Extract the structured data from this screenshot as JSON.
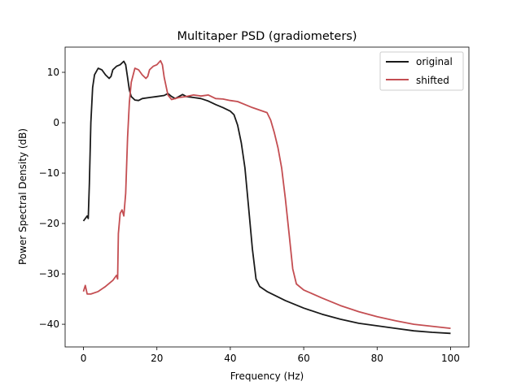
{
  "chart_data": {
    "type": "line",
    "title": "Multitaper PSD (gradiometers)",
    "xlabel": "Frequency (Hz)",
    "ylabel": "Power Spectral Density (dB)",
    "xlim": [
      -5,
      105
    ],
    "ylim": [
      -44.5,
      15
    ],
    "xticks": [
      0,
      20,
      40,
      60,
      80,
      100
    ],
    "yticks": [
      10,
      0,
      -10,
      -20,
      -30,
      -40
    ],
    "grid": false,
    "legend": "top-right",
    "series": [
      {
        "name": "original",
        "color": "#1a1a1a",
        "x": [
          0,
          0.5,
          1,
          1.3,
          1.6,
          2,
          2.5,
          3,
          4,
          5,
          6,
          7,
          7.5,
          8,
          9,
          10,
          11,
          11.5,
          12,
          12.5,
          13,
          14,
          15,
          16,
          18,
          20,
          22,
          23,
          24,
          25,
          27,
          28,
          30,
          32,
          34,
          36,
          38,
          40,
          41,
          42,
          43,
          44,
          45,
          46,
          47,
          48,
          50,
          55,
          60,
          65,
          70,
          75,
          80,
          85,
          90,
          95,
          100
        ],
        "y": [
          -19.5,
          -19,
          -18.5,
          -19,
          -12,
          0,
          7,
          9.5,
          10.8,
          10.5,
          9.5,
          8.8,
          9.2,
          10.5,
          11.2,
          11.5,
          12.2,
          11.5,
          9,
          6.5,
          5.2,
          4.5,
          4.4,
          4.8,
          5,
          5.2,
          5.4,
          5.8,
          5.2,
          4.8,
          5.6,
          5.2,
          5,
          4.8,
          4.3,
          3.6,
          3,
          2.3,
          1.6,
          -0.5,
          -4,
          -9,
          -17,
          -25,
          -31,
          -32.5,
          -33.5,
          -35.3,
          -36.8,
          -38,
          -39,
          -39.8,
          -40.3,
          -40.8,
          -41.3,
          -41.6,
          -41.8
        ]
      },
      {
        "name": "shifted",
        "color": "#c44e52",
        "x": [
          0,
          0.5,
          1,
          2,
          4,
          6,
          8,
          9,
          9.3,
          9.5,
          10,
          10.5,
          11,
          11.5,
          12,
          12.5,
          13,
          14,
          15,
          16,
          17,
          17.5,
          18,
          19,
          20,
          21,
          21.5,
          22,
          23,
          24,
          26,
          28,
          30,
          32,
          34,
          36,
          38,
          40,
          42,
          44,
          46,
          48,
          50,
          51,
          52,
          53,
          54,
          55,
          56,
          57,
          58,
          60,
          65,
          70,
          75,
          80,
          85,
          90,
          95,
          100
        ],
        "y": [
          -33.5,
          -32.3,
          -34,
          -34,
          -33.5,
          -32.5,
          -31.3,
          -30.3,
          -31,
          -22,
          -18,
          -17.3,
          -18.5,
          -14,
          -3,
          4,
          8,
          10.8,
          10.5,
          9.5,
          8.8,
          9.2,
          10.5,
          11.2,
          11.5,
          12.3,
          11.5,
          9,
          5.5,
          4.6,
          5,
          5.2,
          5.5,
          5.3,
          5.5,
          4.8,
          4.7,
          4.4,
          4.2,
          3.6,
          3,
          2.5,
          2,
          0.5,
          -2,
          -5,
          -9,
          -15,
          -22,
          -29,
          -32,
          -33.2,
          -34.8,
          -36.3,
          -37.5,
          -38.5,
          -39.3,
          -40,
          -40.4,
          -40.8
        ]
      }
    ]
  }
}
